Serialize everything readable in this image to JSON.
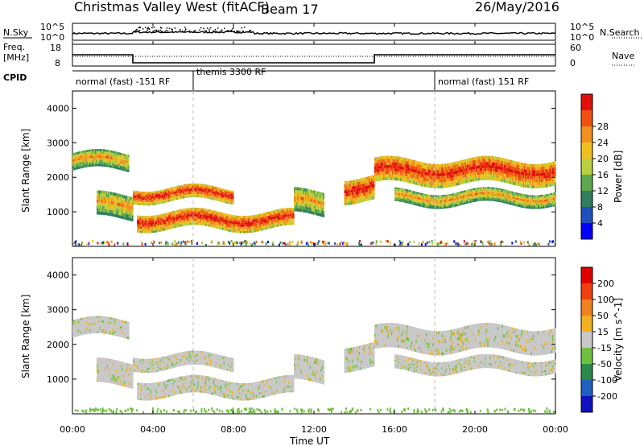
{
  "header": {
    "site_title": "Christmas Valley West (fitACF)",
    "beam": "Beam 17",
    "date": "26/May/2016"
  },
  "panels": {
    "nsky": {
      "label": "N.Sky",
      "left_ticks": [
        "10^5",
        "10^0"
      ],
      "right_ticks": [
        "10^5",
        "10^0"
      ],
      "right_label": "N.Search"
    },
    "freq": {
      "label_line1": "Freq.",
      "label_line2": "[MHz]",
      "left_ticks": [
        "18",
        "8"
      ],
      "right_ticks": [
        "60",
        "0"
      ],
      "right_label": "Nave"
    },
    "cpid": {
      "label": "CPID",
      "segments": [
        {
          "text": "normal (fast) -151 RF",
          "start": 0,
          "end": 6
        },
        {
          "text": "themis 3300 RF",
          "start": 6,
          "end": 18
        },
        {
          "text": "normal (fast) 151 RF",
          "start": 18,
          "end": 24
        }
      ]
    }
  },
  "axes": {
    "ylabel": "Slant Range [km]",
    "xlabel": "Time UT",
    "xticks": [
      "00:00",
      "04:00",
      "08:00",
      "12:00",
      "16:00",
      "20:00",
      "00:00"
    ],
    "yticks": [
      "1000",
      "2000",
      "3000",
      "4000"
    ]
  },
  "power_colorbar": {
    "label": "Power [dB]",
    "ticks": [
      "4",
      "8",
      "12",
      "16",
      "20",
      "24",
      "28"
    ],
    "colors": [
      "#0000ff",
      "#1f4fbf",
      "#2f7f5f",
      "#5fa84f",
      "#b8d040",
      "#f0c020",
      "#f09020",
      "#f05010",
      "#e01010"
    ]
  },
  "velocity_colorbar": {
    "label": "Velocity [m s^-1]",
    "ticks": [
      "200",
      "100",
      "50",
      "15",
      "-15",
      "-50",
      "-100",
      "-200"
    ],
    "colors": [
      "#1010c0",
      "#2060c0",
      "#2a8a4a",
      "#70c040",
      "#c8c8c8",
      "#f0b020",
      "#f08020",
      "#f04010",
      "#e00000"
    ]
  },
  "chart_data": {
    "type": "heatmap",
    "title": "Christmas Valley West (fitACF)",
    "x_range": [
      "00:00",
      "24:00"
    ],
    "y_range_km": [
      0,
      4500
    ],
    "freq_mhz": [
      {
        "start": 0,
        "end": 3,
        "value": 15
      },
      {
        "start": 3,
        "end": 15,
        "value": 10
      },
      {
        "start": 15,
        "end": 24,
        "value": 15
      }
    ],
    "power_echo_bands": [
      {
        "t0": 0,
        "t1": 2.8,
        "r0": 2200,
        "r1": 2700,
        "level": "mid"
      },
      {
        "t0": 1.2,
        "t1": 3.0,
        "r0": 800,
        "r1": 1500,
        "level": "mid"
      },
      {
        "t0": 3.0,
        "t1": 8.0,
        "r0": 1300,
        "r1": 1700,
        "level": "high"
      },
      {
        "t0": 3.2,
        "t1": 11.0,
        "r0": 500,
        "r1": 1000,
        "level": "high"
      },
      {
        "t0": 11.0,
        "t1": 12.5,
        "r0": 900,
        "r1": 1600,
        "level": "mid"
      },
      {
        "t0": 13.5,
        "t1": 15.0,
        "r0": 1300,
        "r1": 2000,
        "level": "high"
      },
      {
        "t0": 15.0,
        "t1": 24.0,
        "r0": 1800,
        "r1": 2500,
        "level": "high"
      },
      {
        "t0": 16.0,
        "t1": 24.0,
        "r0": 1200,
        "r1": 1600,
        "level": "mid"
      }
    ]
  }
}
